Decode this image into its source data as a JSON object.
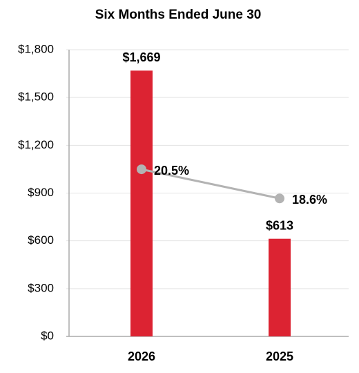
{
  "chart_data": {
    "type": "bar",
    "title": "Six Months Ended June 30",
    "categories": [
      "2026",
      "2025"
    ],
    "series": [
      {
        "type": "bar",
        "color": "#dc2332",
        "values": [
          1669,
          613
        ],
        "value_labels": [
          "$1,669",
          "$613"
        ]
      },
      {
        "type": "line",
        "axis": "y2",
        "color": "#b3b3b3",
        "values": [
          20.5,
          18.6
        ],
        "value_labels": [
          "20.5%",
          "18.6%"
        ]
      }
    ],
    "ylim": [
      0,
      1800
    ],
    "yticks": [
      {
        "value": 0,
        "label": "$0"
      },
      {
        "value": 300,
        "label": "$300"
      },
      {
        "value": 600,
        "label": "$600"
      },
      {
        "value": 900,
        "label": "$900"
      },
      {
        "value": 1200,
        "label": "$1,200"
      },
      {
        "value": 1500,
        "label": "$1,500"
      },
      {
        "value": 1800,
        "label": "$1,800"
      }
    ],
    "y2lim": [
      9.6,
      28.3
    ],
    "grid": true
  }
}
